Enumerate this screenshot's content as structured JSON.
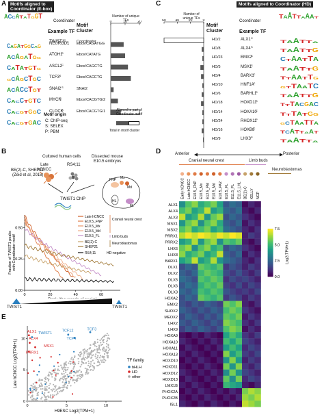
{
  "panelA": {
    "letter": "A",
    "title_line1": "Motifs aligned to",
    "title_line2": "Coordinator (E-box)",
    "col_tf": "Example TF",
    "col_cluster_1": "Motif",
    "col_cluster_2": "Cluster",
    "col_axis": "Number of unique TFs",
    "axis_ticks": [
      "0",
      "10",
      "20"
    ],
    "coordinator_label": "Coordinator",
    "rows": [
      {
        "tf": "TWIST1",
        "sup": "C",
        "cluster": "Coordinator",
        "gray": 0,
        "total": 0
      },
      {
        "tf": "NEUROD1",
        "sup": "C",
        "cluster": "Ebox/CAGATGG",
        "gray": 9,
        "total": 9
      },
      {
        "tf": "ATOH1",
        "sup": "S",
        "cluster": "Ebox/CATATG",
        "gray": 10,
        "total": 10
      },
      {
        "tf": "ASCL2",
        "sup": "C",
        "cluster": "Ebox/CAGCTG",
        "gray": 12,
        "total": 12
      },
      {
        "tf": "TCF3",
        "sup": "S",
        "cluster": "Ebox/CACCTG",
        "gray": 14,
        "total": 14
      },
      {
        "tf": "SNAI2",
        "sup": "S",
        "cluster": "SNAI2",
        "gray": 2,
        "total": 2
      },
      {
        "tf": "MYCN",
        "sup": "C",
        "cluster": "Ebox/CACGTG/2",
        "gray": 5,
        "total": 5
      },
      {
        "tf": "CLOCK",
        "sup": "S",
        "cluster": "Ebox/CACGTG/1",
        "gray": 7,
        "total": 20
      }
    ],
    "origin_title": "Motif origin",
    "origin_items": [
      "C: ChIP-seq",
      "S: SELEX",
      "P: PBM"
    ],
    "legend_aligned": "Aligned to part of Coordinator motif",
    "legend_total": "Total in motif cluster"
  },
  "panelC": {
    "letter": "C",
    "title": "Motifs aligned to Coordinator (HD)",
    "col_axis_1": "Number of",
    "col_axis_2": "unique TFs",
    "axis_ticks": [
      "60",
      "40",
      "20",
      "0"
    ],
    "col_cluster_1": "Motif",
    "col_cluster_2": "Cluster",
    "col_tf": "Example TF",
    "coordinator_label": "Coordinator",
    "rows": [
      {
        "cluster": "HD/2",
        "tf": "ALX1",
        "sup": "C",
        "gray": 60,
        "total": 60
      },
      {
        "cluster": "HD/8",
        "tf": "ALX4",
        "sup": "S",
        "gray": 3,
        "total": 3
      },
      {
        "cluster": "HD/23",
        "tf": "EMX2",
        "sup": "S",
        "gray": 2,
        "total": 2
      },
      {
        "cluster": "HD/5",
        "tf": "MSX1",
        "sup": "S",
        "gray": 5,
        "total": 5
      },
      {
        "cluster": "HD/4",
        "tf": "BARX1",
        "sup": "C",
        "gray": 4,
        "total": 4
      },
      {
        "cluster": "HD/10",
        "tf": "HNF1A",
        "sup": "C",
        "gray": 2,
        "total": 2
      },
      {
        "cluster": "HD/6",
        "tf": "BARHL1",
        "sup": "S",
        "gray": 3,
        "total": 3
      },
      {
        "cluster": "HD/18",
        "tf": "HOXD11",
        "sup": "S",
        "gray": 4,
        "total": 4
      },
      {
        "cluster": "HD/14",
        "tf": "HOXA10",
        "sup": "C",
        "gray": 2,
        "total": 2
      },
      {
        "cluster": "HD/24",
        "tf": "RHOX11",
        "sup": "P",
        "gray": 2,
        "total": 2
      },
      {
        "cluster": "HD/16",
        "tf": "HOXB8",
        "sup": "C",
        "gray": 3,
        "total": 3
      },
      {
        "cluster": "HD/9",
        "tf": "LHX3",
        "sup": "P",
        "gray": 1,
        "total": 1
      }
    ]
  },
  "panelB": {
    "letter": "B",
    "cultured_title": "Cultured human cells",
    "late_hcncc": "Late hCNCC",
    "rs411": "RS4;11",
    "be2c": "BE(2)-C, SHEP21",
    "be2c_ref": "(Zeid et al, 2018)",
    "dissected_1": "Dissected mouse",
    "dissected_2": "E10.5 embryos",
    "fnp": "FNP",
    "mx": "Mx",
    "md": "Md",
    "hl": "HL",
    "fl": "FL",
    "chip_label": "TWIST1 ChIP",
    "ylabel_1": "Fraction of TWIST1 peaks",
    "ylabel_2": "with Coordinator motif",
    "xlabel": "Rank (thousands of peaks)",
    "y_ticks": [
      "0.50",
      "0.25",
      "0.00"
    ],
    "x_ticks": [
      "0",
      "20",
      "40",
      "60"
    ],
    "bottom_left": "TWIST1",
    "bottom_right": "TWIST1",
    "legend": [
      {
        "name": "Late hCNCC",
        "color": "#d0612a"
      },
      {
        "name": "E10.5_FNP",
        "color": "#e07b46"
      },
      {
        "name": "E10.5_Mx",
        "color": "#e89466"
      },
      {
        "name": "E10.5_Md",
        "color": "#f0ae88"
      },
      {
        "name": "E10.5_FL",
        "color": "#c48dc8"
      },
      {
        "name": "BE(2)-C",
        "color": "#c7a26a"
      },
      {
        "name": "SHEP21",
        "color": "#a27b3a"
      },
      {
        "name": "RS4;11",
        "color": "#111111"
      }
    ],
    "group_labels": [
      "Cranial neural crest",
      "Limb buds",
      "Neuroblastomas",
      "HD-negative"
    ]
  },
  "panelD": {
    "letter": "D",
    "anterior": "Anterior",
    "posterior": "Posterior",
    "group_cnc": "Cranial neural crest",
    "group_limb": "Limb buds",
    "group_nb": "Neuroblastomas",
    "columns": [
      "Early hCNCC",
      "Late hCNCC",
      "E10.5_FNP",
      "E10.5_Mx",
      "E12.5_PM",
      "E10.5_Md",
      "E10.5_PA2",
      "E10.5_FL",
      "E11.5_FL",
      "E11.5_LHL",
      "BE(2)-C",
      "KELLY",
      "NGP"
    ],
    "rows": [
      "ALX1",
      "ALX4",
      "ALX3",
      "MSX1",
      "MSX2",
      "PRRX1",
      "PRRX2",
      "LHX6",
      "LHX8",
      "BARX1",
      "DLX1",
      "DLX2",
      "DLX5",
      "DLX6",
      "DLX3",
      "HOXA2",
      "EMX2",
      "SHOX2",
      "MEOX2",
      "LHX2",
      "LHX9",
      "HOXA9",
      "HOXA10",
      "HOXA11",
      "HOXA13",
      "HOXD10",
      "HOXD11",
      "HOXD12",
      "HOXD13",
      "LMX1B",
      "PHOX2A",
      "PHOX2B",
      "ISL1"
    ],
    "colorbar_label": "Log2(TPM+1)",
    "colorbar_ticks": [
      "7.5",
      "5.0",
      "2.5",
      "0.0"
    ]
  },
  "panelE": {
    "letter": "E",
    "ylabel": "Late hCNCC Log2(TPM+1)",
    "xlabel": "H9ESC Log2(TPM+1)",
    "x_ticks": [
      "0",
      "5",
      "10"
    ],
    "y_ticks": [
      "0",
      "5",
      "10"
    ],
    "labels_red": [
      "ALX1",
      "ALX4",
      "MSX1",
      "PRRX1"
    ],
    "labels_blue": [
      "TWIST1",
      "TCF12",
      "TCF4",
      "TCF3"
    ],
    "legend_title": "TF family",
    "legend": [
      {
        "name": "bHLH",
        "color": "#2a7fbf"
      },
      {
        "name": "HD",
        "color": "#d62728"
      },
      {
        "name": "other",
        "color": "#aaaaaa"
      }
    ]
  }
}
